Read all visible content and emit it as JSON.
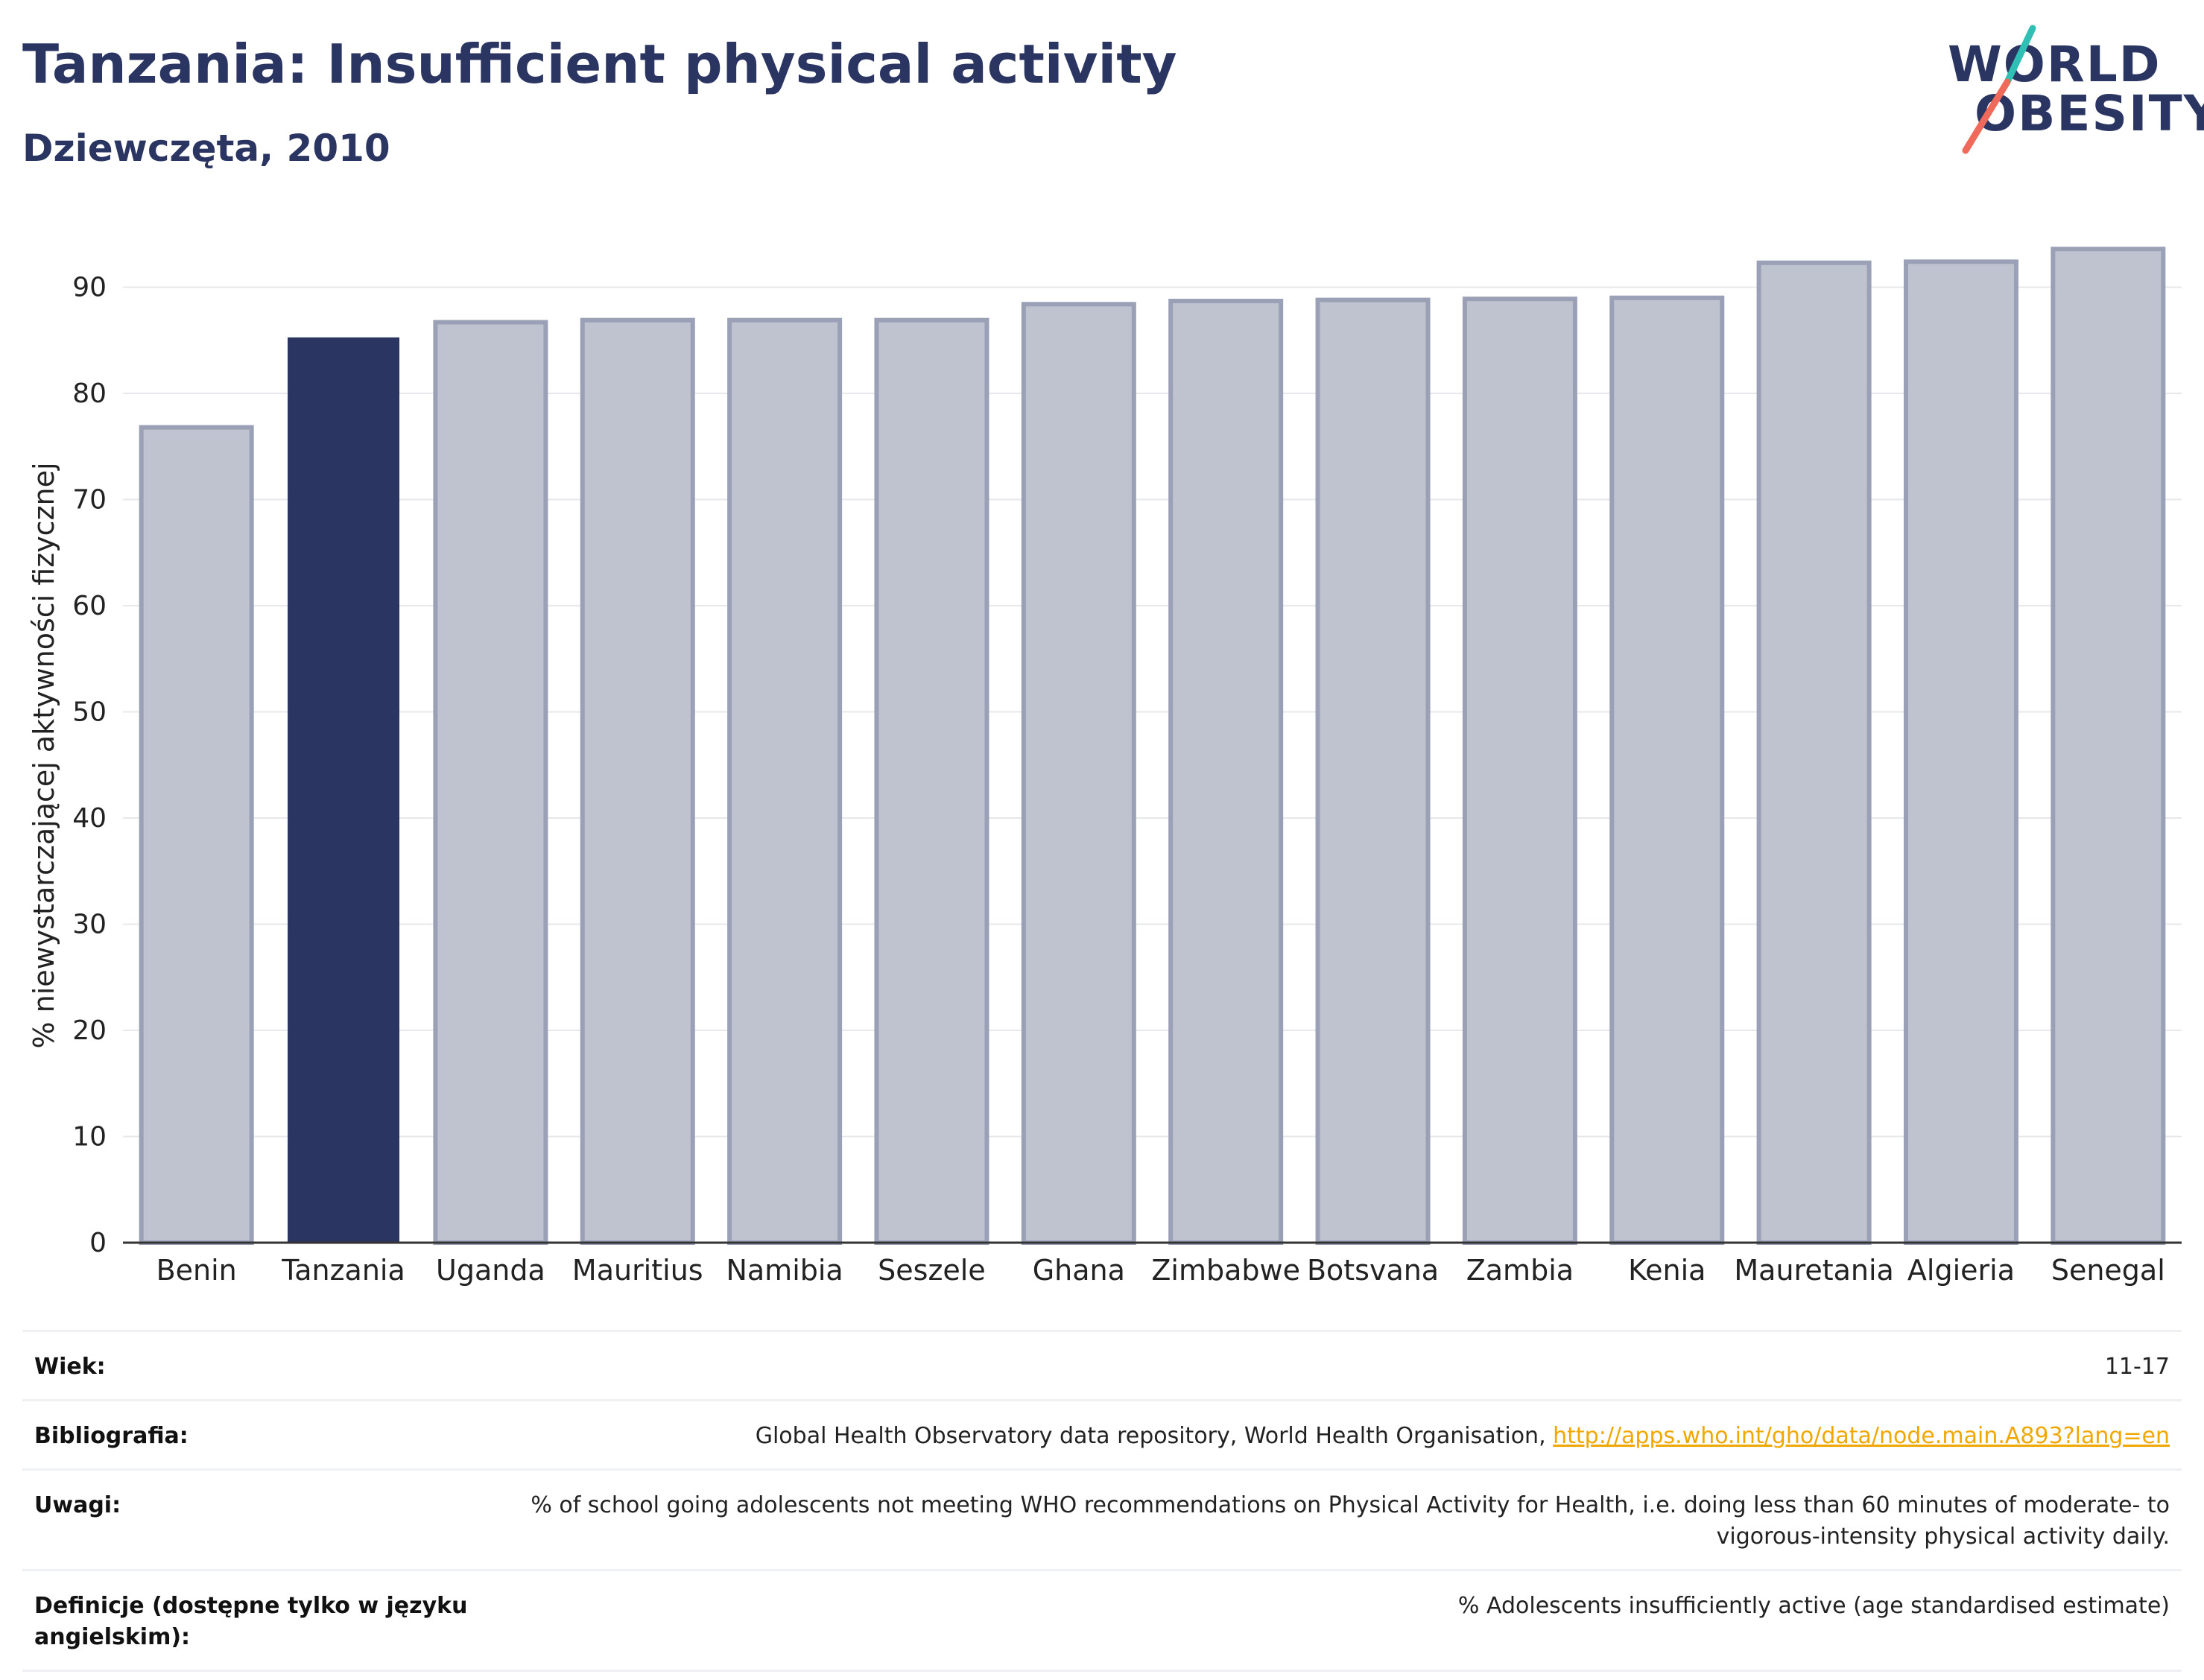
{
  "header": {
    "title": "Tanzania: Insufficient physical activity",
    "subtitle": "Dziewczęta, 2010"
  },
  "logo": {
    "line1": "WORLD",
    "line2": "OBESITY",
    "colors": {
      "text": "#2b3562",
      "slash_teal": "#2fbfb5",
      "slash_coral": "#ef6a5a"
    }
  },
  "colors": {
    "highlight_bar": "#2b3562",
    "other_bar_fill": "#bfc3d0",
    "other_bar_stroke": "#9aa0b6",
    "grid": "#e6e8ec",
    "axis": "#333333",
    "link": "#f0a800"
  },
  "chart_data": {
    "type": "bar",
    "ylabel": "% niewystarczającej aktywności fizycznej",
    "xlabel": "",
    "ylim": [
      0,
      96
    ],
    "yticks": [
      0,
      10,
      20,
      30,
      40,
      50,
      60,
      70,
      80,
      90
    ],
    "grid": true,
    "categories": [
      "Benin",
      "Tanzania",
      "Uganda",
      "Mauritius",
      "Namibia",
      "Seszele",
      "Ghana",
      "Zimbabwe",
      "Botsvana",
      "Zambia",
      "Kenia",
      "Mauretania",
      "Algieria",
      "Senegal"
    ],
    "values": [
      76.8,
      85.2,
      86.7,
      86.9,
      86.9,
      86.9,
      88.4,
      88.7,
      88.8,
      88.9,
      89.0,
      92.3,
      92.4,
      93.6
    ],
    "highlight": "Tanzania"
  },
  "info": {
    "rows": [
      {
        "label": "Wiek:",
        "value": "11-17"
      },
      {
        "label": "Bibliografia:",
        "value": "Global Health Observatory data repository, World Health Organisation, ",
        "link": "http://apps.who.int/gho/data/node.main.A893?lang=en"
      },
      {
        "label": "Uwagi:",
        "value": "% of school going adolescents not meeting WHO recommendations on Physical Activity for Health, i.e. doing less than 60 minutes of moderate- to vigorous-intensity physical activity daily."
      },
      {
        "label": "Definicje (dostępne tylko w języku angielskim):",
        "value": "% Adolescents insufficiently active (age standardised estimate)"
      }
    ]
  }
}
